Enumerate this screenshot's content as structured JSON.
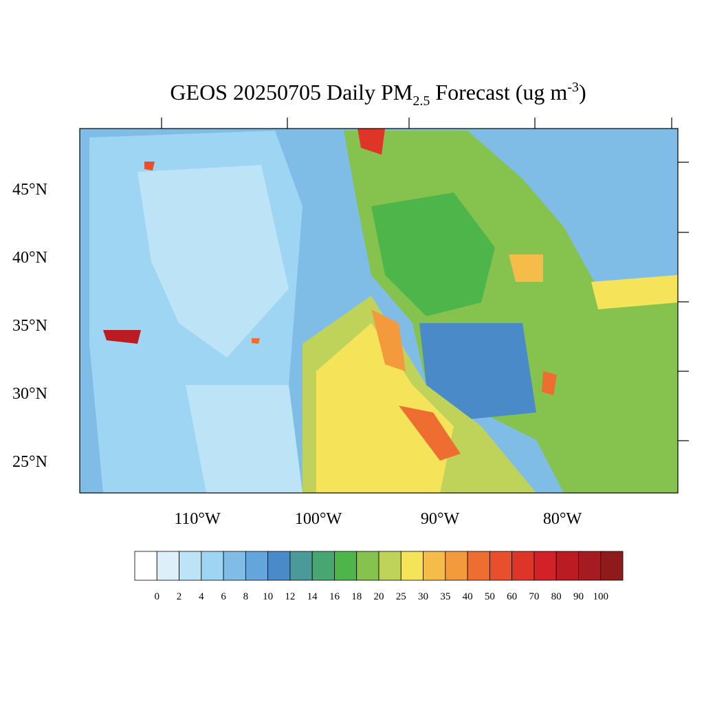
{
  "title": {
    "main": "GEOS 20250705 Daily PM",
    "sub": "2.5",
    "after": " Forecast (ug m",
    "sup": "-3",
    "close": ")"
  },
  "lat_labels": [
    "45°N",
    "40°N",
    "35°N",
    "30°N",
    "25°N"
  ],
  "lon_labels": [
    "110°W",
    "100°W",
    "90°W",
    "80°W"
  ],
  "colorbar": {
    "levels": [
      0,
      2,
      4,
      6,
      8,
      10,
      12,
      14,
      16,
      18,
      20,
      25,
      30,
      35,
      40,
      50,
      60,
      70,
      80,
      90,
      100
    ],
    "colors": [
      "#ffffff",
      "#ddf0fa",
      "#bde4f6",
      "#9dd5f3",
      "#80bde6",
      "#64a6db",
      "#4a8ac8",
      "#4a9a9a",
      "#48a673",
      "#4db54a",
      "#85c24e",
      "#bfd35a",
      "#f5e35a",
      "#f6bc4a",
      "#f39a3c",
      "#ee6d31",
      "#e84f2c",
      "#df3528",
      "#d22127",
      "#bb1c24",
      "#a61b21",
      "#8f1a1b"
    ]
  }
}
